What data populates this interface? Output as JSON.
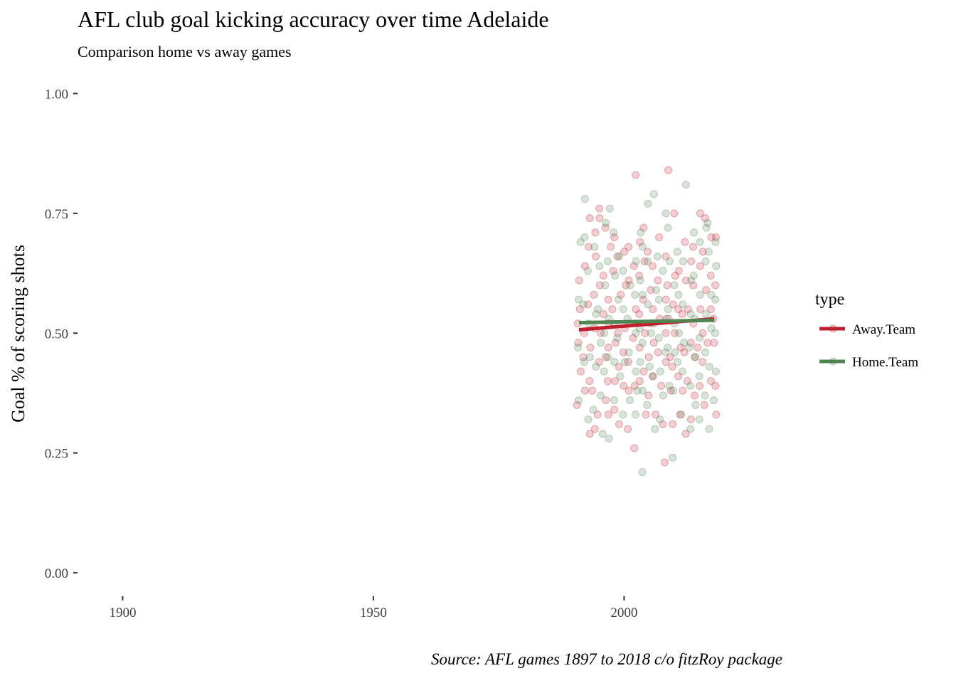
{
  "chart_data": {
    "type": "scatter",
    "title": "AFL club goal kicking accuracy over time Adelaide",
    "subtitle": "Comparison home vs away games",
    "ylabel": "Goal % of scoring shots",
    "xlabel": "",
    "caption": "Source: AFL games 1897 to 2018 c/o fitzRoy package",
    "xlim": [
      1891,
      2032
    ],
    "ylim": [
      -0.04,
      1.02
    ],
    "x_ticks": [
      1900,
      1950,
      2000
    ],
    "x_tick_labels": [
      "1900",
      "1950",
      "2000"
    ],
    "y_ticks": [
      0,
      0.25,
      0.5,
      0.75,
      1
    ],
    "y_tick_labels": [
      "0.00",
      "0.25",
      "0.50",
      "0.75",
      "1.00"
    ],
    "grid": false,
    "legend": {
      "title": "type",
      "position": "right"
    },
    "series": [
      {
        "name": "Away.Team",
        "color": "#c0202e",
        "trend": {
          "x": [
            1991,
            2018
          ],
          "y": [
            0.507,
            0.53
          ]
        },
        "points": [
          [
            1991,
            0.35
          ],
          [
            1991,
            0.42
          ],
          [
            1991,
            0.48
          ],
          [
            1991,
            0.52
          ],
          [
            1991,
            0.55
          ],
          [
            1991,
            0.61
          ],
          [
            1992,
            0.45
          ],
          [
            1992,
            0.64
          ],
          [
            1992,
            0.38
          ],
          [
            1992,
            0.5
          ],
          [
            1993,
            0.29
          ],
          [
            1993,
            0.4
          ],
          [
            1993,
            0.47
          ],
          [
            1993,
            0.56
          ],
          [
            1993,
            0.68
          ],
          [
            1993,
            0.74
          ],
          [
            1994,
            0.3
          ],
          [
            1994,
            0.38
          ],
          [
            1994,
            0.51
          ],
          [
            1994,
            0.58
          ],
          [
            1994,
            0.66
          ],
          [
            1994,
            0.71
          ],
          [
            1995,
            0.33
          ],
          [
            1995,
            0.44
          ],
          [
            1995,
            0.5
          ],
          [
            1995,
            0.6
          ],
          [
            1995,
            0.74
          ],
          [
            1995,
            0.76
          ],
          [
            1996,
            0.36
          ],
          [
            1996,
            0.45
          ],
          [
            1996,
            0.54
          ],
          [
            1996,
            0.62
          ],
          [
            1996,
            0.72
          ],
          [
            1997,
            0.33
          ],
          [
            1997,
            0.4
          ],
          [
            1997,
            0.47
          ],
          [
            1997,
            0.52
          ],
          [
            1997,
            0.57
          ],
          [
            1997,
            0.68
          ],
          [
            1998,
            0.34
          ],
          [
            1998,
            0.4
          ],
          [
            1998,
            0.48
          ],
          [
            1998,
            0.55
          ],
          [
            1998,
            0.63
          ],
          [
            1998,
            0.7
          ],
          [
            1999,
            0.31
          ],
          [
            1999,
            0.43
          ],
          [
            1999,
            0.5
          ],
          [
            1999,
            0.58
          ],
          [
            1999,
            0.66
          ],
          [
            2000,
            0.39
          ],
          [
            2000,
            0.46
          ],
          [
            2000,
            0.51
          ],
          [
            2000,
            0.6
          ],
          [
            2000,
            0.67
          ],
          [
            2001,
            0.3
          ],
          [
            2001,
            0.38
          ],
          [
            2001,
            0.44
          ],
          [
            2001,
            0.52
          ],
          [
            2001,
            0.61
          ],
          [
            2001,
            0.68
          ],
          [
            2002,
            0.26
          ],
          [
            2002,
            0.39
          ],
          [
            2002,
            0.49
          ],
          [
            2002,
            0.55
          ],
          [
            2002,
            0.64
          ],
          [
            2002,
            0.83
          ],
          [
            2003,
            0.4
          ],
          [
            2003,
            0.47
          ],
          [
            2003,
            0.54
          ],
          [
            2003,
            0.62
          ],
          [
            2003,
            0.69
          ],
          [
            2004,
            0.33
          ],
          [
            2004,
            0.42
          ],
          [
            2004,
            0.5
          ],
          [
            2004,
            0.57
          ],
          [
            2004,
            0.65
          ],
          [
            2004,
            0.72
          ],
          [
            2005,
            0.37
          ],
          [
            2005,
            0.45
          ],
          [
            2005,
            0.52
          ],
          [
            2005,
            0.59
          ],
          [
            2005,
            0.67
          ],
          [
            2006,
            0.33
          ],
          [
            2006,
            0.41
          ],
          [
            2006,
            0.48
          ],
          [
            2006,
            0.55
          ],
          [
            2006,
            0.64
          ],
          [
            2007,
            0.39
          ],
          [
            2007,
            0.46
          ],
          [
            2007,
            0.53
          ],
          [
            2007,
            0.61
          ],
          [
            2007,
            0.7
          ],
          [
            2008,
            0.23
          ],
          [
            2008,
            0.31
          ],
          [
            2008,
            0.44
          ],
          [
            2008,
            0.5
          ],
          [
            2008,
            0.57
          ],
          [
            2008,
            0.66
          ],
          [
            2009,
            0.38
          ],
          [
            2009,
            0.45
          ],
          [
            2009,
            0.53
          ],
          [
            2009,
            0.6
          ],
          [
            2009,
            0.84
          ],
          [
            2010,
            0.31
          ],
          [
            2010,
            0.43
          ],
          [
            2010,
            0.5
          ],
          [
            2010,
            0.56
          ],
          [
            2010,
            0.62
          ],
          [
            2010,
            0.75
          ],
          [
            2011,
            0.33
          ],
          [
            2011,
            0.41
          ],
          [
            2011,
            0.47
          ],
          [
            2011,
            0.55
          ],
          [
            2011,
            0.63
          ],
          [
            2012,
            0.29
          ],
          [
            2012,
            0.38
          ],
          [
            2012,
            0.46
          ],
          [
            2012,
            0.54
          ],
          [
            2012,
            0.61
          ],
          [
            2012,
            0.69
          ],
          [
            2013,
            0.32
          ],
          [
            2013,
            0.4
          ],
          [
            2013,
            0.48
          ],
          [
            2013,
            0.55
          ],
          [
            2013,
            0.65
          ],
          [
            2014,
            0.37
          ],
          [
            2014,
            0.45
          ],
          [
            2014,
            0.52
          ],
          [
            2014,
            0.6
          ],
          [
            2014,
            0.68
          ],
          [
            2015,
            0.39
          ],
          [
            2015,
            0.47
          ],
          [
            2015,
            0.55
          ],
          [
            2015,
            0.64
          ],
          [
            2015,
            0.75
          ],
          [
            2016,
            0.35
          ],
          [
            2016,
            0.44
          ],
          [
            2016,
            0.5
          ],
          [
            2016,
            0.59
          ],
          [
            2016,
            0.67
          ],
          [
            2016,
            0.74
          ],
          [
            2017,
            0.4
          ],
          [
            2017,
            0.48
          ],
          [
            2017,
            0.55
          ],
          [
            2017,
            0.62
          ],
          [
            2017,
            0.7
          ],
          [
            2018,
            0.33
          ],
          [
            2018,
            0.39
          ],
          [
            2018,
            0.48
          ],
          [
            2018,
            0.53
          ],
          [
            2018,
            0.6
          ],
          [
            2018,
            0.7
          ]
        ]
      },
      {
        "name": "Home.Team",
        "color": "#4f8550",
        "trend": {
          "x": [
            1991,
            2018
          ],
          "y": [
            0.522,
            0.527
          ]
        },
        "points": [
          [
            1991,
            0.36
          ],
          [
            1991,
            0.47
          ],
          [
            1991,
            0.57
          ],
          [
            1991,
            0.69
          ],
          [
            1992,
            0.44
          ],
          [
            1992,
            0.56
          ],
          [
            1992,
            0.7
          ],
          [
            1992,
            0.78
          ],
          [
            1993,
            0.32
          ],
          [
            1993,
            0.45
          ],
          [
            1993,
            0.52
          ],
          [
            1993,
            0.63
          ],
          [
            1994,
            0.34
          ],
          [
            1994,
            0.43
          ],
          [
            1994,
            0.54
          ],
          [
            1994,
            0.68
          ],
          [
            1995,
            0.37
          ],
          [
            1995,
            0.48
          ],
          [
            1995,
            0.55
          ],
          [
            1995,
            0.64
          ],
          [
            1996,
            0.29
          ],
          [
            1996,
            0.42
          ],
          [
            1996,
            0.5
          ],
          [
            1996,
            0.6
          ],
          [
            1996,
            0.73
          ],
          [
            1997,
            0.28
          ],
          [
            1997,
            0.45
          ],
          [
            1997,
            0.53
          ],
          [
            1997,
            0.65
          ],
          [
            1997,
            0.76
          ],
          [
            1998,
            0.36
          ],
          [
            1998,
            0.44
          ],
          [
            1998,
            0.52
          ],
          [
            1998,
            0.62
          ],
          [
            1998,
            0.71
          ],
          [
            1999,
            0.41
          ],
          [
            1999,
            0.49
          ],
          [
            1999,
            0.57
          ],
          [
            1999,
            0.66
          ],
          [
            2000,
            0.33
          ],
          [
            2000,
            0.44
          ],
          [
            2000,
            0.55
          ],
          [
            2000,
            0.63
          ],
          [
            2001,
            0.36
          ],
          [
            2001,
            0.46
          ],
          [
            2001,
            0.53
          ],
          [
            2001,
            0.6
          ],
          [
            2002,
            0.33
          ],
          [
            2002,
            0.42
          ],
          [
            2002,
            0.5
          ],
          [
            2002,
            0.58
          ],
          [
            2002,
            0.65
          ],
          [
            2003,
            0.38
          ],
          [
            2003,
            0.44
          ],
          [
            2003,
            0.51
          ],
          [
            2003,
            0.61
          ],
          [
            2003,
            0.71
          ],
          [
            2004,
            0.21
          ],
          [
            2004,
            0.38
          ],
          [
            2004,
            0.48
          ],
          [
            2004,
            0.58
          ],
          [
            2004,
            0.68
          ],
          [
            2005,
            0.35
          ],
          [
            2005,
            0.43
          ],
          [
            2005,
            0.5
          ],
          [
            2005,
            0.56
          ],
          [
            2005,
            0.65
          ],
          [
            2005,
            0.77
          ],
          [
            2006,
            0.3
          ],
          [
            2006,
            0.41
          ],
          [
            2006,
            0.52
          ],
          [
            2006,
            0.59
          ],
          [
            2006,
            0.79
          ],
          [
            2007,
            0.32
          ],
          [
            2007,
            0.42
          ],
          [
            2007,
            0.49
          ],
          [
            2007,
            0.57
          ],
          [
            2007,
            0.66
          ],
          [
            2008,
            0.37
          ],
          [
            2008,
            0.46
          ],
          [
            2008,
            0.53
          ],
          [
            2008,
            0.63
          ],
          [
            2008,
            0.75
          ],
          [
            2009,
            0.39
          ],
          [
            2009,
            0.47
          ],
          [
            2009,
            0.55
          ],
          [
            2009,
            0.65
          ],
          [
            2009,
            0.72
          ],
          [
            2010,
            0.24
          ],
          [
            2010,
            0.38
          ],
          [
            2010,
            0.46
          ],
          [
            2010,
            0.52
          ],
          [
            2010,
            0.6
          ],
          [
            2011,
            0.33
          ],
          [
            2011,
            0.44
          ],
          [
            2011,
            0.5
          ],
          [
            2011,
            0.58
          ],
          [
            2011,
            0.67
          ],
          [
            2012,
            0.42
          ],
          [
            2012,
            0.48
          ],
          [
            2012,
            0.56
          ],
          [
            2012,
            0.65
          ],
          [
            2012,
            0.81
          ],
          [
            2013,
            0.3
          ],
          [
            2013,
            0.39
          ],
          [
            2013,
            0.47
          ],
          [
            2013,
            0.54
          ],
          [
            2013,
            0.61
          ],
          [
            2014,
            0.35
          ],
          [
            2014,
            0.45
          ],
          [
            2014,
            0.53
          ],
          [
            2014,
            0.62
          ],
          [
            2014,
            0.71
          ],
          [
            2015,
            0.32
          ],
          [
            2015,
            0.41
          ],
          [
            2015,
            0.49
          ],
          [
            2015,
            0.58
          ],
          [
            2015,
            0.69
          ],
          [
            2016,
            0.37
          ],
          [
            2016,
            0.46
          ],
          [
            2016,
            0.54
          ],
          [
            2016,
            0.65
          ],
          [
            2016,
            0.72
          ],
          [
            2017,
            0.3
          ],
          [
            2017,
            0.43
          ],
          [
            2017,
            0.51
          ],
          [
            2017,
            0.58
          ],
          [
            2017,
            0.67
          ],
          [
            2017,
            0.73
          ],
          [
            2018,
            0.36
          ],
          [
            2018,
            0.42
          ],
          [
            2018,
            0.5
          ],
          [
            2018,
            0.57
          ],
          [
            2018,
            0.64
          ],
          [
            2018,
            0.69
          ]
        ]
      }
    ]
  }
}
